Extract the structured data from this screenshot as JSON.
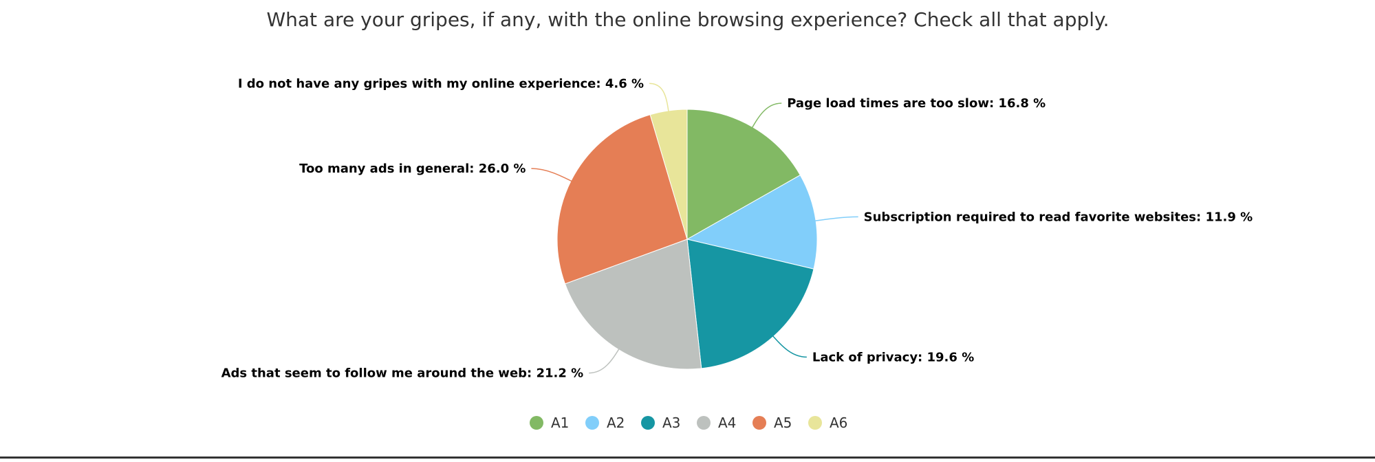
{
  "chart_data": {
    "type": "pie",
    "title": "What are your gripes, if any, with the online browsing experience? Check all that apply.",
    "legend_position": "bottom",
    "slices": [
      {
        "legend": "A1",
        "label": "Page load times are too slow",
        "value": 16.8,
        "display": "16.8 %",
        "color": "#82b964"
      },
      {
        "legend": "A2",
        "label": "Subscription required to read favorite websites",
        "value": 11.9,
        "display": "11.9 %",
        "color": "#81cefa"
      },
      {
        "legend": "A3",
        "label": "Lack of privacy",
        "value": 19.6,
        "display": "19.6 %",
        "color": "#1696a3"
      },
      {
        "legend": "A4",
        "label": "Ads that seem to follow me around the web",
        "value": 21.2,
        "display": "21.2 %",
        "color": "#bdc1be"
      },
      {
        "legend": "A5",
        "label": "Too many ads in general",
        "value": 26.0,
        "display": "26.0 %",
        "color": "#e57e55"
      },
      {
        "legend": "A6",
        "label": "I do not have any gripes with my online experience",
        "value": 4.6,
        "display": "4.6 %",
        "color": "#e8e59a"
      }
    ]
  }
}
